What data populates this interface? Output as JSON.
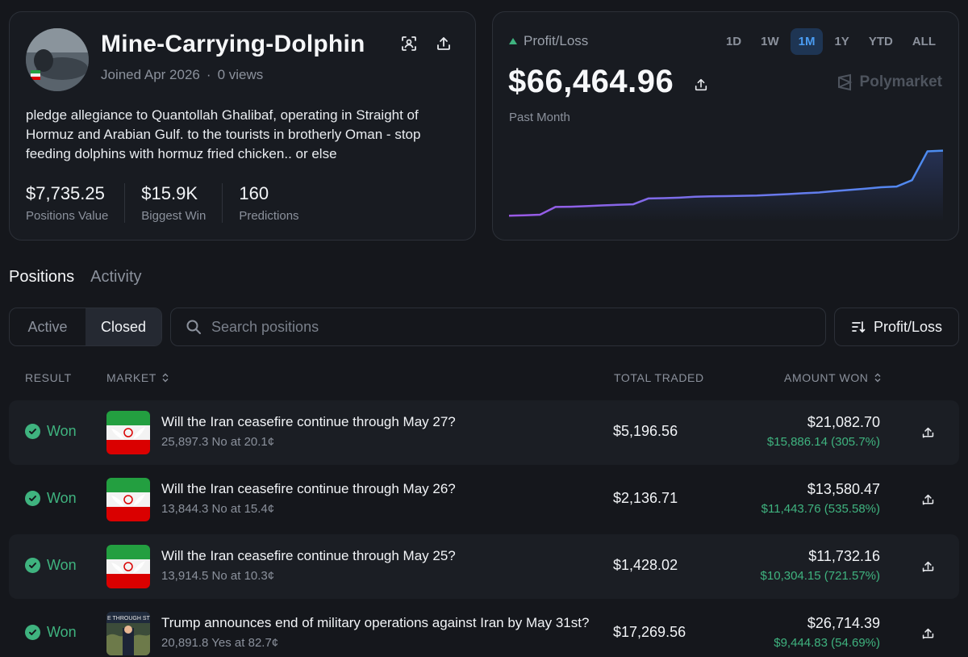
{
  "profile": {
    "name": "Mine-Carrying-Dolphin",
    "joined": "Joined Apr 2026",
    "separator": "·",
    "views": "0 views",
    "bio": "pledge allegiance to Quantollah Ghalibaf, operating in Straight of Hormuz and Arabian Gulf. to the tourists in brotherly Oman - stop feeding dolphins with hormuz fried chicken.. or else",
    "stats": [
      {
        "value": "$7,735.25",
        "label": "Positions Value"
      },
      {
        "value": "$15.9K",
        "label": "Biggest Win"
      },
      {
        "value": "160",
        "label": "Predictions"
      }
    ]
  },
  "pnl": {
    "label": "Profit/Loss",
    "value": "$66,464.96",
    "period": "Past Month",
    "brand": "Polymarket",
    "ranges": [
      "1D",
      "1W",
      "1M",
      "1Y",
      "YTD",
      "ALL"
    ],
    "active_range": "1M",
    "colors": {
      "up": "#3fb37f",
      "line_start": "#9b59e6",
      "line_end": "#4a8df0"
    }
  },
  "chart_data": {
    "type": "line",
    "title": "",
    "xlabel": "",
    "ylabel": "",
    "grid": false,
    "series": [
      {
        "values": [
          300,
          380,
          520,
          2150,
          2200,
          2320,
          2480,
          2600,
          2700,
          3950,
          4010,
          4120,
          4300,
          4380,
          4430,
          4500,
          4560,
          4700,
          4850,
          5050,
          5200,
          5500,
          5750,
          6000,
          6300,
          6450,
          7800,
          13900,
          14050
        ]
      }
    ],
    "ylim": [
      0,
      15000
    ]
  },
  "tabs": [
    {
      "label": "Positions",
      "active": true
    },
    {
      "label": "Activity",
      "active": false
    }
  ],
  "filter": {
    "active_label": "Active",
    "closed_label": "Closed",
    "selected": "Closed"
  },
  "search": {
    "placeholder": "Search positions"
  },
  "sort": {
    "label": "Profit/Loss"
  },
  "table": {
    "headers": {
      "result": "RESULT",
      "market": "MARKET",
      "total_traded": "TOTAL TRADED",
      "amount_won": "AMOUNT WON"
    },
    "rows": [
      {
        "result": "Won",
        "title": "Will the Iran ceasefire continue through May 27?",
        "sub": "25,897.3 No at 20.1¢",
        "traded": "$5,196.56",
        "amount": "$21,082.70",
        "pct": "$15,886.14 (305.7%)",
        "thumb": "iran-flag"
      },
      {
        "result": "Won",
        "title": "Will the Iran ceasefire continue through May 26?",
        "sub": "13,844.3 No at 15.4¢",
        "traded": "$2,136.71",
        "amount": "$13,580.47",
        "pct": "$11,443.76 (535.58%)",
        "thumb": "iran-flag"
      },
      {
        "result": "Won",
        "title": "Will the Iran ceasefire continue through May 25?",
        "sub": "13,914.5 No at 10.3¢",
        "traded": "$1,428.02",
        "amount": "$11,732.16",
        "pct": "$10,304.15 (721.57%)",
        "thumb": "iran-flag"
      },
      {
        "result": "Won",
        "title": "Trump announces end of military operations against Iran by May 31st?",
        "sub": "20,891.8 Yes at 82.7¢",
        "traded": "$17,269.56",
        "amount": "$26,714.39",
        "pct": "$9,444.83 (54.69%)",
        "thumb": "trump-photo",
        "thumb_text": "E THROUGH STRENG"
      }
    ]
  }
}
